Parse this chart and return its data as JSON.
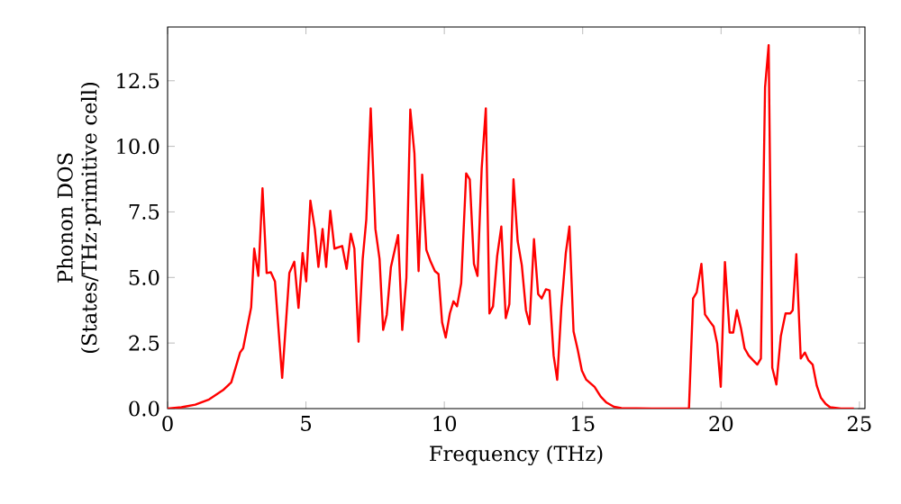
{
  "chart_data": {
    "type": "line",
    "xlabel": "Frequency (THz)",
    "ylabel": "Phonon DOS (States/THz·primitive cell)",
    "xlim": [
      0,
      25.2
    ],
    "ylim": [
      0,
      14.55
    ],
    "xticks": [
      0,
      5,
      10,
      15,
      20,
      25
    ],
    "yticks": [
      {
        "value": 0,
        "label": "0.0"
      },
      {
        "value": 2.5,
        "label": "2.5"
      },
      {
        "value": 5,
        "label": "5.0"
      },
      {
        "value": 7.5,
        "label": "7.5"
      },
      {
        "value": 10,
        "label": "10.0"
      },
      {
        "value": 12.5,
        "label": "12.5"
      }
    ],
    "marker": "none",
    "line_style": "solid",
    "series": [
      {
        "color": "#ff0000",
        "x": [
          0,
          0.5,
          1,
          1.5,
          2,
          2.3,
          2.62,
          2.73,
          3.02,
          3.13,
          3.28,
          3.43,
          3.58,
          3.73,
          3.88,
          4.14,
          4.4,
          4.58,
          4.73,
          4.88,
          5.01,
          5.16,
          5.32,
          5.45,
          5.6,
          5.73,
          5.88,
          6.03,
          6.31,
          6.47,
          6.62,
          6.75,
          6.9,
          7.05,
          7.18,
          7.34,
          7.51,
          7.66,
          7.79,
          7.92,
          8.07,
          8.33,
          8.48,
          8.63,
          8.77,
          8.92,
          9.07,
          9.2,
          9.35,
          9.51,
          9.66,
          9.79,
          9.92,
          10.05,
          10.2,
          10.33,
          10.46,
          10.61,
          10.79,
          10.92,
          11.07,
          11.2,
          11.35,
          11.5,
          11.63,
          11.76,
          11.91,
          12.06,
          12.22,
          12.35,
          12.5,
          12.65,
          12.8,
          12.95,
          13.08,
          13.24,
          13.39,
          13.52,
          13.67,
          13.8,
          13.95,
          14.08,
          14.23,
          14.39,
          14.52,
          14.67,
          14.82,
          14.97,
          15.13,
          15.43,
          15.65,
          15.86,
          16.13,
          16.4,
          17.5,
          18.84,
          18.99,
          19.12,
          19.29,
          19.42,
          19.57,
          19.73,
          19.86,
          19.99,
          20.14,
          20.31,
          20.44,
          20.57,
          20.72,
          20.85,
          21.0,
          21.16,
          21.31,
          21.44,
          21.59,
          21.72,
          21.85,
          22.0,
          22.16,
          22.33,
          22.5,
          22.59,
          22.72,
          22.88,
          23.03,
          23.16,
          23.31,
          23.46,
          23.61,
          23.78,
          23.94,
          24.33,
          24.8
        ],
        "values": [
          0,
          0.05,
          0.15,
          0.35,
          0.7,
          1.0,
          2.14,
          2.3,
          3.86,
          6.1,
          5.06,
          8.4,
          5.17,
          5.2,
          4.85,
          1.17,
          5.17,
          5.6,
          3.84,
          5.93,
          4.85,
          7.93,
          6.85,
          5.4,
          6.85,
          5.4,
          7.54,
          6.1,
          6.2,
          5.33,
          6.67,
          6.1,
          2.55,
          5.7,
          7.2,
          11.45,
          6.85,
          5.7,
          3.0,
          3.58,
          5.4,
          6.62,
          3.0,
          5.0,
          11.4,
          9.73,
          5.24,
          8.92,
          6.05,
          5.59,
          5.24,
          5.13,
          3.29,
          2.71,
          3.63,
          4.09,
          3.9,
          4.78,
          8.97,
          8.74,
          5.52,
          5.06,
          9.15,
          11.45,
          3.63,
          3.9,
          5.82,
          6.94,
          3.45,
          3.98,
          8.74,
          6.39,
          5.47,
          3.75,
          3.22,
          6.46,
          4.37,
          4.2,
          4.55,
          4.51,
          2.02,
          1.1,
          3.86,
          5.93,
          6.94,
          2.94,
          2.25,
          1.45,
          1.1,
          0.83,
          0.46,
          0.23,
          0.07,
          0.02,
          0,
          0,
          4.2,
          4.43,
          5.52,
          3.59,
          3.36,
          3.13,
          2.48,
          0.83,
          5.59,
          2.9,
          2.9,
          3.75,
          3.06,
          2.3,
          2.02,
          1.84,
          1.68,
          1.91,
          12.25,
          13.86,
          1.56,
          0.92,
          2.76,
          3.63,
          3.63,
          3.75,
          5.89,
          1.91,
          2.14,
          1.84,
          1.68,
          0.87,
          0.41,
          0.18,
          0.05,
          0,
          0
        ]
      }
    ]
  }
}
